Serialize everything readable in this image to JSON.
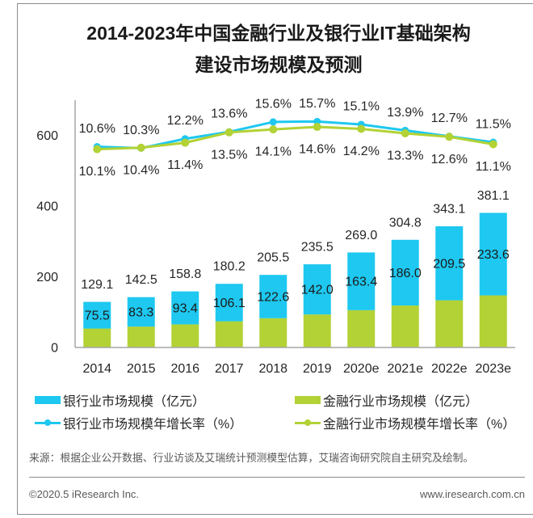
{
  "title": {
    "line1": "2014-2023年中国金融行业及银行业IT基础架构",
    "line2": "建设市场规模及预测"
  },
  "source": "来源：根据企业公开数据、行业访谈及艾瑞统计预测模型估算，艾瑞咨询研究院自主研究及绘制。",
  "footer": {
    "copyright": "©2020.5 iResearch Inc.",
    "website": "www.iresearch.com.cn"
  },
  "colors": {
    "bank": "#1EC8F0",
    "finance": "#B2D235",
    "axis": "#a6a6a6",
    "label": "#262626"
  },
  "chart_data": {
    "type": "bar",
    "title": "2014-2023年中国金融行业及银行业IT基础架构建设市场规模及预测",
    "xlabel": "",
    "ylabel": "",
    "categories": [
      "2014",
      "2015",
      "2016",
      "2017",
      "2018",
      "2019",
      "2020e",
      "2021e",
      "2022e",
      "2023e"
    ],
    "series": [
      {
        "name": "银行业市场规模（亿元）",
        "type": "bar",
        "role": "upper stacked segment of the total bar (labeled inside)",
        "color": "#1EC8F0",
        "values": [
          75.5,
          83.3,
          93.4,
          106.1,
          122.6,
          142.0,
          163.4,
          186.0,
          209.5,
          233.6
        ]
      },
      {
        "name": "金融行业市场规模（亿元）",
        "type": "bar",
        "role": "total bar height (labeled above bar)",
        "color": "#B2D235",
        "values": [
          129.1,
          142.5,
          158.8,
          180.2,
          205.5,
          235.5,
          269.0,
          304.8,
          343.1,
          381.1
        ]
      },
      {
        "name": "银行业市场规模年增长率（%）",
        "type": "line",
        "axis": "secondary",
        "color": "#1EC8F0",
        "values": [
          10.6,
          10.3,
          12.2,
          13.6,
          15.6,
          15.7,
          15.1,
          13.9,
          12.7,
          11.5
        ]
      },
      {
        "name": "金融行业市场规模年增长率（%）",
        "type": "line",
        "axis": "secondary",
        "color": "#B2D235",
        "values": [
          10.1,
          10.4,
          11.4,
          13.5,
          14.1,
          14.6,
          14.2,
          13.3,
          12.6,
          11.1
        ]
      }
    ],
    "ylim": [
      0,
      700
    ],
    "yticks": [
      0,
      200,
      400,
      600
    ],
    "y2lim": [
      -30,
      20
    ],
    "y2_visible": false,
    "grid": false,
    "legend": "bottom"
  }
}
